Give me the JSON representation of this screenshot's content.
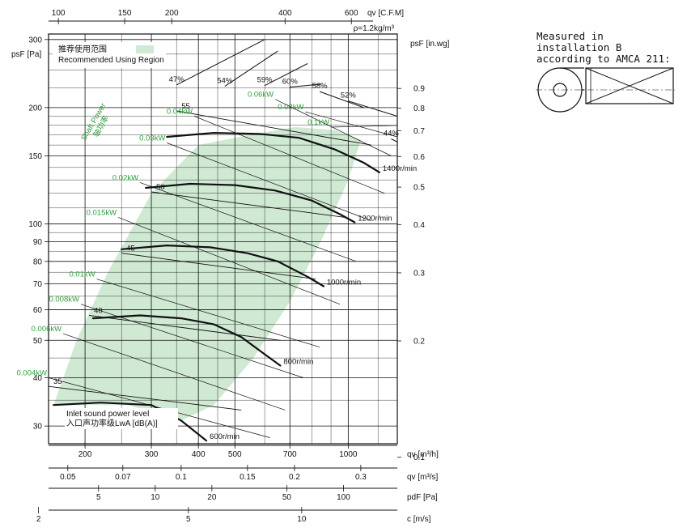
{
  "chart_data": {
    "type": "line",
    "top_axis": {
      "title": "qv [C.F.M]",
      "ticks": [
        "100",
        "150",
        "200",
        "400",
        "600"
      ]
    },
    "density_note": "ρ=1.2kg/m³",
    "left_axis": {
      "title": "psF [Pa]",
      "ticks": [
        "300",
        "200",
        "150",
        "100",
        "90",
        "80",
        "70",
        "60",
        "50",
        "40",
        "30"
      ],
      "scale": "log",
      "ylim": [
        27,
        310
      ]
    },
    "right_axis": {
      "title": "psF [in.wg]",
      "ticks": [
        "0.9",
        "0.8",
        "0.7",
        "0.6",
        "0.5",
        "0.4",
        "0.3",
        "0.2",
        "0.1"
      ]
    },
    "bottom_axes": [
      {
        "title": "qv [m³/h]",
        "ticks": [
          "200",
          "300",
          "400",
          "500",
          "700",
          "1000"
        ],
        "scale": "log"
      },
      {
        "title": "qv [m³/s]",
        "ticks": [
          "0.05",
          "0.07",
          "0.1",
          "0.15",
          "0.2",
          "0.3"
        ]
      },
      {
        "title": "pdF [Pa]",
        "ticks": [
          "2",
          "5",
          "10",
          "20",
          "50",
          "100"
        ]
      },
      {
        "title": "c [m/s]",
        "ticks": [
          "2",
          "5",
          "10"
        ]
      }
    ],
    "xlim_m3h": [
      160,
      1350
    ],
    "legend": {
      "position": "top-left",
      "label_cn": "推荐使用范围",
      "label_en": "Recommended Using Region"
    },
    "shaft_power_label": {
      "en": "Shaft Power",
      "cn": "轴功率"
    },
    "inlet_sound_label": {
      "en": "Inlet sound power level",
      "cn": "入口声功率级LwA [dB(A)]"
    },
    "speed_curves": [
      {
        "name": "600r/min",
        "points": [
          [
            165,
            34
          ],
          [
            220,
            34.5
          ],
          [
            300,
            34
          ],
          [
            360,
            31
          ],
          [
            420,
            27.5
          ]
        ]
      },
      {
        "name": "800r/min",
        "points": [
          [
            210,
            57
          ],
          [
            280,
            58
          ],
          [
            360,
            57
          ],
          [
            440,
            55
          ],
          [
            520,
            51
          ],
          [
            600,
            46
          ],
          [
            660,
            43
          ]
        ]
      },
      {
        "name": "1000r/min",
        "points": [
          [
            250,
            86
          ],
          [
            330,
            88
          ],
          [
            430,
            87
          ],
          [
            540,
            84
          ],
          [
            650,
            80
          ],
          [
            780,
            73
          ],
          [
            860,
            69
          ]
        ]
      },
      {
        "name": "1200r/min",
        "points": [
          [
            290,
            124
          ],
          [
            380,
            127
          ],
          [
            500,
            126
          ],
          [
            640,
            122
          ],
          [
            800,
            115
          ],
          [
            950,
            106
          ],
          [
            1040,
            101
          ]
        ]
      },
      {
        "name": "1400r/min",
        "points": [
          [
            330,
            168
          ],
          [
            440,
            172
          ],
          [
            580,
            171
          ],
          [
            740,
            167
          ],
          [
            920,
            156
          ],
          [
            1100,
            144
          ],
          [
            1210,
            136
          ]
        ]
      }
    ],
    "efficiency_curves": [
      {
        "name": "47%",
        "points": [
          [
            350,
            229
          ],
          [
            600,
            300
          ]
        ]
      },
      {
        "name": "54%",
        "points": [
          [
            470,
            227
          ],
          [
            650,
            280
          ]
        ]
      },
      {
        "name": "59%",
        "points": [
          [
            600,
            228
          ],
          [
            780,
            260
          ]
        ]
      },
      {
        "name": "60%",
        "points": [
          [
            700,
            226
          ],
          [
            850,
            230
          ]
        ]
      },
      {
        "name": "58%",
        "points": [
          [
            840,
            220
          ],
          [
            1100,
            200
          ]
        ]
      },
      {
        "name": "52%",
        "points": [
          [
            1000,
            208
          ],
          [
            1350,
            190
          ]
        ]
      },
      {
        "name": "44%",
        "points": [
          [
            1300,
            166
          ],
          [
            1600,
            150
          ]
        ]
      }
    ],
    "sound_lines": [
      {
        "name": "35",
        "points": [
          [
            160,
            38
          ],
          [
            520,
            33
          ]
        ]
      },
      {
        "name": "40",
        "points": [
          [
            205,
            58
          ],
          [
            660,
            50
          ]
        ]
      },
      {
        "name": "45",
        "points": [
          [
            250,
            84
          ],
          [
            820,
            72
          ]
        ]
      },
      {
        "name": "50",
        "points": [
          [
            300,
            121
          ],
          [
            980,
            104
          ]
        ]
      },
      {
        "name": "55",
        "points": [
          [
            350,
            196
          ],
          [
            1150,
            160
          ]
        ]
      }
    ],
    "power_lines": [
      {
        "name": "0.004kW",
        "points": [
          [
            160,
            40
          ],
          [
            620,
            28
          ]
        ]
      },
      {
        "name": "0.006kW",
        "points": [
          [
            175,
            52
          ],
          [
            680,
            33
          ]
        ]
      },
      {
        "name": "0.008kW",
        "points": [
          [
            195,
            62
          ],
          [
            760,
            40
          ]
        ]
      },
      {
        "name": "0.01kW",
        "points": [
          [
            215,
            72
          ],
          [
            840,
            48
          ]
        ]
      },
      {
        "name": "0.015kW",
        "points": [
          [
            245,
            104
          ],
          [
            950,
            62
          ]
        ]
      },
      {
        "name": "0.02kW",
        "points": [
          [
            280,
            128
          ],
          [
            1050,
            80
          ]
        ]
      },
      {
        "name": "0.03kW",
        "points": [
          [
            330,
            162
          ],
          [
            1150,
            102
          ]
        ]
      },
      {
        "name": "0.04kW",
        "points": [
          [
            390,
            190
          ],
          [
            1250,
            120
          ]
        ]
      },
      {
        "name": "0.06kW",
        "points": [
          [
            640,
            210
          ],
          [
            1300,
            150
          ]
        ]
      },
      {
        "name": "0.08kW",
        "points": [
          [
            770,
            195
          ],
          [
            1350,
            168
          ]
        ]
      },
      {
        "name": "0.1kW",
        "points": [
          [
            900,
            178
          ],
          [
            1400,
            180
          ]
        ]
      }
    ],
    "recommended_region": [
      [
        165,
        34
      ],
      [
        260,
        34
      ],
      [
        360,
        31
      ],
      [
        440,
        34
      ],
      [
        560,
        45
      ],
      [
        700,
        63
      ],
      [
        850,
        91
      ],
      [
        1000,
        130
      ],
      [
        1080,
        165
      ],
      [
        920,
        175
      ],
      [
        720,
        178
      ],
      [
        550,
        170
      ],
      [
        400,
        160
      ],
      [
        300,
        120
      ],
      [
        230,
        75
      ],
      [
        190,
        50
      ]
    ]
  },
  "install_note": {
    "line1": "Measured in installation B",
    "line2": "according to AMCA 211:"
  }
}
